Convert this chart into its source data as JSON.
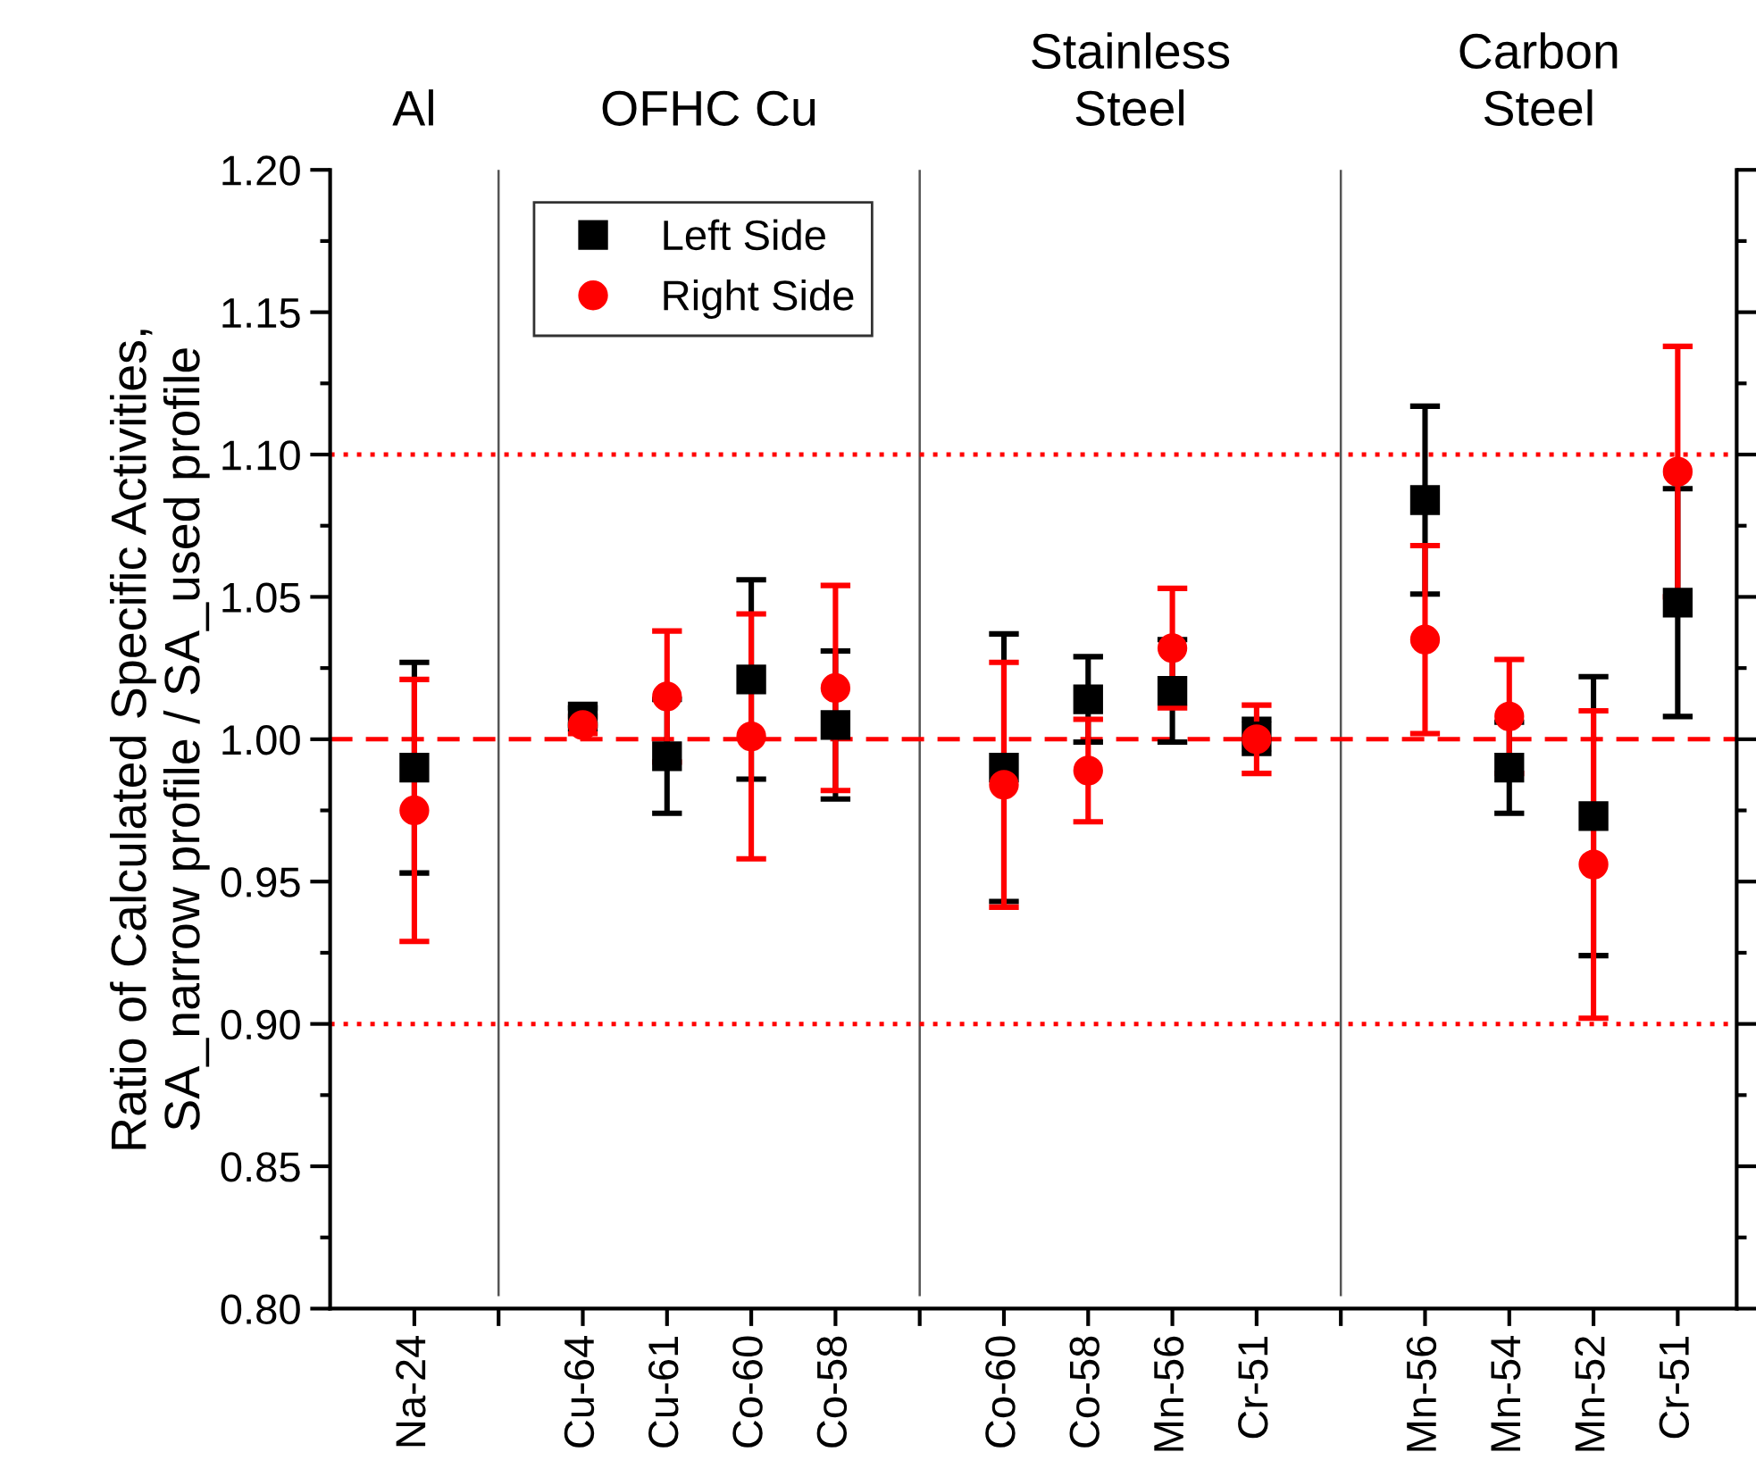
{
  "chart_data": {
    "type": "scatter",
    "ylabel": "Ratio of Calculated Specific Activities,\nSA_narrow profile / SA_used profile",
    "categories": [
      "Na-24",
      null,
      "Cu-64",
      "Cu-61",
      "Co-60",
      "Co-58",
      null,
      "Co-60",
      "Co-58",
      "Mn-56",
      "Cr-51",
      null,
      "Mn-56",
      "Mn-54",
      "Mn-52",
      "Cr-51"
    ],
    "series": [
      {
        "name": "Left Side",
        "color": "#000000",
        "marker": "square",
        "values": [
          0.99,
          null,
          1.008,
          0.994,
          1.021,
          1.005,
          null,
          0.99,
          1.014,
          1.017,
          1.001,
          null,
          1.084,
          0.99,
          0.973,
          1.048
        ],
        "errors": [
          0.037,
          null,
          0.003,
          0.02,
          0.035,
          0.026,
          null,
          0.047,
          0.015,
          0.018,
          0.006,
          null,
          0.033,
          0.016,
          0.049,
          0.04
        ]
      },
      {
        "name": "Right Side",
        "color": "#ff0000",
        "marker": "circle",
        "values": [
          0.975,
          null,
          1.005,
          1.015,
          1.001,
          1.018,
          null,
          0.984,
          0.989,
          1.032,
          1.0,
          null,
          1.035,
          1.008,
          0.956,
          1.094
        ],
        "errors": [
          0.046,
          null,
          0.003,
          0.023,
          0.043,
          0.036,
          null,
          0.043,
          0.018,
          0.021,
          0.012,
          null,
          0.033,
          0.02,
          0.054,
          0.044
        ]
      }
    ],
    "annotations": [
      "Al",
      "OFHC Cu",
      "Stainless\nSteel",
      "Carbon\nSteel"
    ],
    "ylim": [
      0.8,
      1.2
    ],
    "yticks": [
      {
        "value": 0.8,
        "label": "0.80"
      },
      {
        "value": 0.85,
        "label": "0.85"
      },
      {
        "value": 0.9,
        "label": "0.90"
      },
      {
        "value": 0.95,
        "label": "0.95"
      },
      {
        "value": 1.0,
        "label": "1.00"
      },
      {
        "value": 1.05,
        "label": "1.05"
      },
      {
        "value": 1.1,
        "label": "1.10"
      },
      {
        "value": 1.15,
        "label": "1.15"
      },
      {
        "value": 1.2,
        "label": "1.20"
      }
    ],
    "ref_lines": [
      {
        "axis": "y",
        "value": 1.0,
        "color": "#ff0000",
        "line_style": "dashed"
      },
      {
        "axis": "y",
        "value": 1.1,
        "color": "#ff0000",
        "line_style": "dotted"
      },
      {
        "axis": "y",
        "value": 0.9,
        "color": "#ff0000",
        "line_style": "dotted"
      }
    ],
    "grid": "x",
    "legend": "top left"
  }
}
